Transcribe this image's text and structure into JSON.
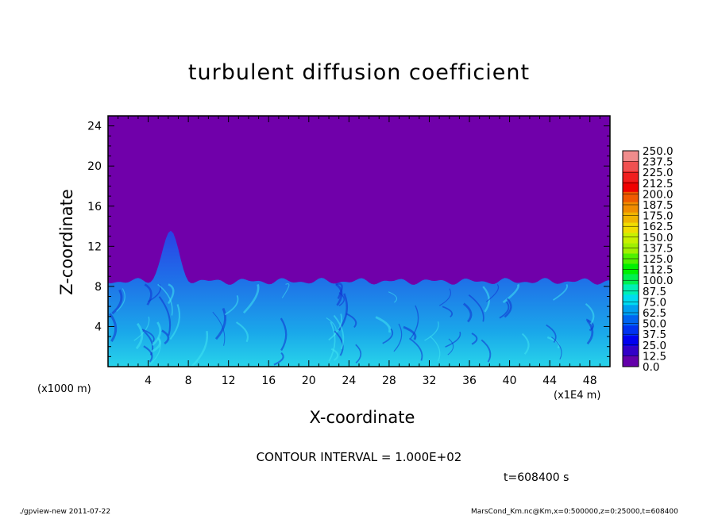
{
  "chart_data": {
    "type": "heatmap",
    "title": "turbulent diffusion coefficient",
    "xlabel": "X-coordinate",
    "ylabel": "Z-coordinate",
    "x_unit_left": "(x1000 m)",
    "x_unit_right": "(x1E4 m)",
    "xlim": [
      0,
      50
    ],
    "ylim": [
      0,
      25
    ],
    "x_ticks": [
      "4",
      "8",
      "12",
      "16",
      "20",
      "24",
      "28",
      "32",
      "36",
      "40",
      "44",
      "48"
    ],
    "y_ticks": [
      "4",
      "8",
      "12",
      "16",
      "20",
      "24"
    ],
    "colorbar_levels": [
      "250.0",
      "237.5",
      "225.0",
      "212.5",
      "200.0",
      "187.5",
      "175.0",
      "162.5",
      "150.0",
      "137.5",
      "125.0",
      "112.5",
      "100.0",
      "87.5",
      "75.0",
      "62.5",
      "50.0",
      "37.5",
      "25.0",
      "12.5",
      "0.0"
    ],
    "colorbar_colors": [
      "#f08c8c",
      "#f05050",
      "#f01e1e",
      "#f00000",
      "#f05a00",
      "#f08c00",
      "#f0b400",
      "#f0dc00",
      "#c8f000",
      "#a0f000",
      "#50f000",
      "#00f000",
      "#00f050",
      "#00f0b4",
      "#00dcf0",
      "#00a0f0",
      "#0064f0",
      "#0032f0",
      "#0000f0",
      "#3200c8",
      "#6400aa"
    ],
    "background_color": "#7000aa",
    "turbulent_layer_top_km": 8.5,
    "plume_peak": {
      "x": 6.2,
      "z": 13.5
    },
    "contour_interval": "CONTOUR INTERVAL = 1.000E+02",
    "time": "t=608400 s"
  },
  "footer": {
    "left": "./gpview-new   2011-07-22",
    "right": "MarsCond_Km.nc@Km,x=0:500000,z=0:25000,t=608400"
  }
}
